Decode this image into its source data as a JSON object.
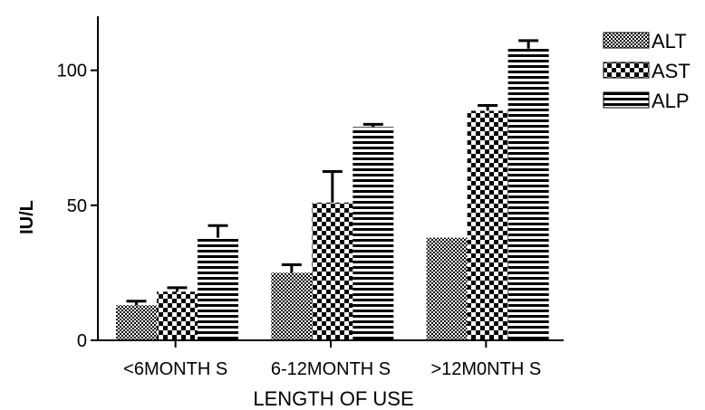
{
  "chart_data": {
    "type": "bar",
    "title": "",
    "xlabel": "LENGTH OF USE",
    "ylabel": "IU/L",
    "categories": [
      "<6MONTH S",
      "6-12MONTH S",
      ">12M0NTH S"
    ],
    "series": [
      {
        "name": "ALT",
        "values": [
          13,
          25,
          38
        ],
        "errors": [
          1.5,
          3,
          0
        ],
        "pattern": "fine-check"
      },
      {
        "name": "AST",
        "values": [
          18,
          51,
          85
        ],
        "errors": [
          1.5,
          11.5,
          2
        ],
        "pattern": "checker"
      },
      {
        "name": "ALP",
        "values": [
          38,
          79,
          108
        ],
        "errors": [
          4.5,
          1,
          3
        ],
        "pattern": "horizontal-stripes"
      }
    ],
    "ylim": [
      0,
      120
    ],
    "yticks": [
      0,
      50,
      100
    ],
    "grid": false,
    "legend_position": "top-right",
    "colors": {
      "ink": "#000000",
      "paper": "#ffffff"
    }
  }
}
